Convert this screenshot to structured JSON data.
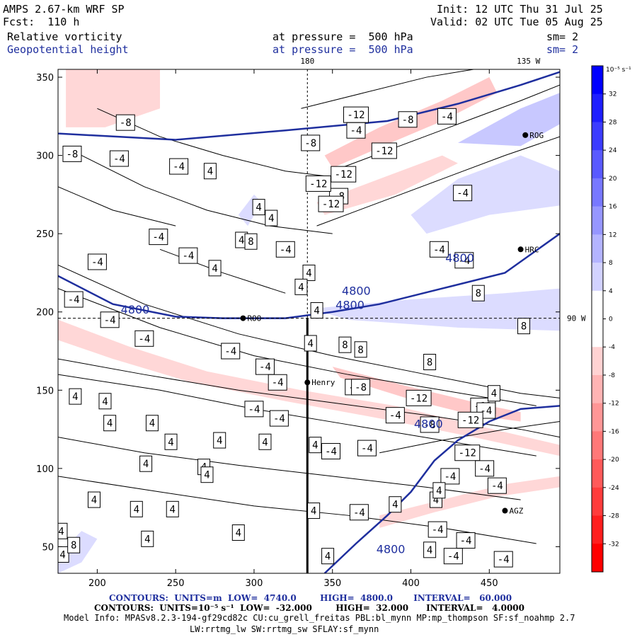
{
  "header": {
    "model": "AMPS 2.67-km WRF SP",
    "fcst": "Fcst:  110 h",
    "init": "Init: 12 UTC Thu 31 Jul 25",
    "valid": "Valid: 02 UTC Tue 05 Aug 25",
    "field1": "Relative vorticity",
    "field2": "Geopotential height",
    "pressure1": "at pressure =  500 hPa",
    "pressure2": "at pressure =  500 hPa",
    "sm1": "sm= 2",
    "sm2": "sm= 2"
  },
  "footer": {
    "contours1": "CONTOURS:  UNITS=m  LOW=  4740.0        HIGH=  4800.0       INTERVAL=   60.000",
    "contours2": "CONTOURS:  UNITS=10⁻⁵ s⁻¹  LOW=  -32.000        HIGH=  32.000      INTERVAL=   4.0000",
    "model_info": "Model Info: MPASv8.2.3-194-gf29cd82c CU:cu_grell_freitas PBL:bl_mynn MP:mp_thompson SF:sf_noahmp 2.7",
    "model_info2": "LW:rrtmg_lw SW:rrtmg_sw SFLAY:sf_mynn"
  },
  "chart_data": {
    "type": "heatmap",
    "fields": [
      "Relative vorticity",
      "Geopotential height"
    ],
    "xlim": [
      175,
      495
    ],
    "ylim": [
      33,
      355
    ],
    "x_ticks": [
      200,
      250,
      300,
      350,
      400,
      450
    ],
    "y_ticks": [
      50,
      100,
      150,
      200,
      250,
      300,
      350
    ],
    "grid_labels": [
      {
        "text": "180",
        "x": 334,
        "y": 355,
        "pos": "top"
      },
      {
        "text": "135 W",
        "x": 475,
        "y": 355,
        "pos": "top"
      },
      {
        "text": "90 W",
        "x": 495,
        "y": 196,
        "pos": "right"
      }
    ],
    "meridian_x": 334,
    "parallel_y": 196,
    "colorbar": {
      "units": "10⁻⁵ s⁻¹",
      "ticks": [
        "32",
        "28",
        "24",
        "20",
        "16",
        "12",
        "8",
        "4",
        "0",
        "-4",
        "-8",
        "-12",
        "-16",
        "-20",
        "-24",
        "-28",
        "-32"
      ],
      "colors_top_to_bottom": [
        "#0000ff",
        "#1e1eff",
        "#3c3cff",
        "#5a5aff",
        "#7878ff",
        "#9696ff",
        "#b4b4ff",
        "#d2d2ff",
        "#ffffff",
        "#ffffff",
        "#ffd2d2",
        "#ffb4b4",
        "#ff9696",
        "#ff7878",
        "#ff5a5a",
        "#ff3c3c",
        "#ff1e1e",
        "#ff0000"
      ]
    },
    "height_contours": [
      {
        "value": "4800",
        "points": [
          [
            175,
            223
          ],
          [
            210,
            205
          ],
          [
            250,
            197
          ],
          [
            280,
            196
          ],
          [
            320,
            196
          ],
          [
            350,
            200
          ],
          [
            380,
            205
          ],
          [
            420,
            215
          ],
          [
            460,
            225
          ],
          [
            495,
            250
          ]
        ]
      },
      {
        "value": "4800",
        "points": [
          [
            112,
            355
          ],
          [
            120,
            330
          ],
          [
            140,
            318
          ],
          [
            175,
            314
          ],
          [
            250,
            310
          ],
          [
            320,
            316
          ],
          [
            385,
            322
          ],
          [
            430,
            333
          ],
          [
            470,
            345
          ],
          [
            500,
            355
          ]
        ]
      },
      {
        "value": "4800",
        "points": [
          [
            345,
            33
          ],
          [
            365,
            52
          ],
          [
            385,
            70
          ],
          [
            400,
            85
          ],
          [
            415,
            105
          ],
          [
            430,
            118
          ],
          [
            450,
            130
          ],
          [
            470,
            138
          ],
          [
            495,
            140
          ]
        ]
      }
    ],
    "height_labels": [
      {
        "text": "4800",
        "x": 215,
        "y": 199
      },
      {
        "text": "4800",
        "x": 352,
        "y": 202
      },
      {
        "text": "4800",
        "x": 356,
        "y": 211
      },
      {
        "text": "4800",
        "x": 422,
        "y": 232
      },
      {
        "text": "4800",
        "x": 402,
        "y": 126
      },
      {
        "text": "4800",
        "x": 378,
        "y": 46
      }
    ],
    "stations": [
      {
        "name": "ROG",
        "x": 473,
        "y": 313
      },
      {
        "name": "HRC",
        "x": 470,
        "y": 240
      },
      {
        "name": "Henry",
        "x": 334,
        "y": 155
      },
      {
        "name": "ROO",
        "x": 293,
        "y": 196
      },
      {
        "name": "AGZ",
        "x": 460,
        "y": 73
      }
    ],
    "vorticity_labels": [
      [
        "-12",
        365,
        326
      ],
      [
        "-8",
        218,
        321
      ],
      [
        "-8",
        336,
        308
      ],
      [
        "-8",
        398,
        323
      ],
      [
        "-4",
        423,
        325
      ],
      [
        "-4",
        365,
        316
      ],
      [
        "-12",
        383,
        303
      ],
      [
        "-8",
        184,
        301
      ],
      [
        "-4",
        214,
        298
      ],
      [
        "-4",
        252,
        293
      ],
      [
        "4",
        272,
        290
      ],
      [
        "-12",
        357,
        288
      ],
      [
        "-8",
        354,
        274
      ],
      [
        "-4",
        433,
        276
      ],
      [
        "4",
        303,
        267
      ],
      [
        "4",
        311,
        260
      ],
      [
        "-4",
        166,
        262
      ],
      [
        "-4",
        239,
        248
      ],
      [
        "4",
        292,
        246
      ],
      [
        "8",
        298,
        245
      ],
      [
        "-12",
        349,
        269
      ],
      [
        "-12",
        341,
        282
      ],
      [
        "-4",
        258,
        236
      ],
      [
        "-4",
        320,
        240
      ],
      [
        "-4",
        418,
        240
      ],
      [
        "-4",
        434,
        233
      ],
      [
        "4",
        275,
        228
      ],
      [
        "-4",
        200,
        232
      ],
      [
        "4",
        335,
        225
      ],
      [
        "4",
        330,
        216
      ],
      [
        "4",
        340,
        201
      ],
      [
        "8",
        443,
        212
      ],
      [
        "8",
        472,
        191
      ],
      [
        "-4",
        185,
        208
      ],
      [
        "-4",
        208,
        195
      ],
      [
        "-4",
        230,
        183
      ],
      [
        "4",
        336,
        180
      ],
      [
        "8",
        358,
        179
      ],
      [
        "8",
        368,
        176
      ],
      [
        "8",
        412,
        168
      ],
      [
        "-4",
        285,
        175
      ],
      [
        "-4",
        307,
        165
      ],
      [
        "-4",
        315,
        155
      ],
      [
        "-8",
        364,
        152
      ],
      [
        "-8",
        368,
        152
      ],
      [
        "-12",
        405,
        145
      ],
      [
        "-12",
        446,
        140
      ],
      [
        "4",
        453,
        148
      ],
      [
        "-4",
        448,
        137
      ],
      [
        "4",
        171,
        148
      ],
      [
        "4",
        186,
        146
      ],
      [
        "4",
        205,
        143
      ],
      [
        "4",
        208,
        129
      ],
      [
        "4",
        235,
        129
      ],
      [
        "-4",
        300,
        138
      ],
      [
        "-4",
        316,
        132
      ],
      [
        "-4",
        390,
        134
      ],
      [
        "-8",
        412,
        128
      ],
      [
        "-12",
        438,
        131
      ],
      [
        "4",
        247,
        117
      ],
      [
        "4",
        278,
        118
      ],
      [
        "4",
        307,
        117
      ],
      [
        "4",
        339,
        115
      ],
      [
        "-4",
        349,
        111
      ],
      [
        "-4",
        372,
        113
      ],
      [
        "-12",
        436,
        110
      ],
      [
        "4",
        231,
        103
      ],
      [
        "4",
        268,
        101
      ],
      [
        "4",
        270,
        96
      ],
      [
        "-4",
        447,
        100
      ],
      [
        "-4",
        425,
        95
      ],
      [
        "-4",
        455,
        89
      ],
      [
        "4",
        198,
        80
      ],
      [
        "4",
        225,
        74
      ],
      [
        "4",
        248,
        74
      ],
      [
        "4",
        338,
        73
      ],
      [
        "-4",
        367,
        72
      ],
      [
        "4",
        390,
        77
      ],
      [
        "4",
        416,
        80
      ],
      [
        "4",
        418,
        86
      ],
      [
        "4",
        177,
        60
      ],
      [
        "4",
        232,
        55
      ],
      [
        "4",
        290,
        59
      ],
      [
        "-4",
        435,
        54
      ],
      [
        "-4",
        417,
        61
      ],
      [
        "4",
        178,
        45
      ],
      [
        "8",
        185,
        51
      ],
      [
        "4",
        347,
        44
      ],
      [
        "4",
        412,
        48
      ],
      [
        "-4",
        427,
        44
      ],
      [
        "-4",
        459,
        42
      ]
    ],
    "black_box_labels": [
      "-8",
      "-12"
    ]
  }
}
